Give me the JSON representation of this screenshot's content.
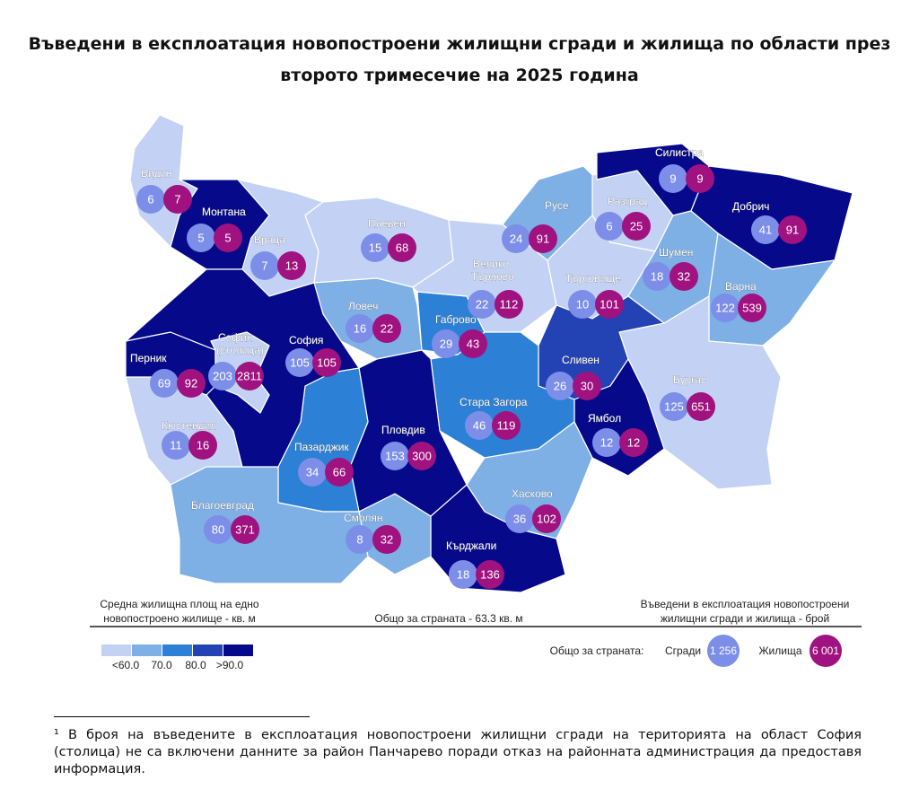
{
  "title": "Въведени в експлоатация новопостроени жилищни сгради и жилища по области през второто тримесечие на 2025 година",
  "colors": {
    "lt60": "#c3d2f4",
    "c70": "#7eafe5",
    "c80": "#2c80d6",
    "c90": "#2342b3",
    "gt90": "#06098a",
    "buildings": "#7c8ee8",
    "dwellings": "#a0127f"
  },
  "regions": [
    {
      "name": "Видин",
      "buildings": 6,
      "dwellings": 7,
      "cat": "lt60"
    },
    {
      "name": "Монтана",
      "buildings": 5,
      "dwellings": 5,
      "cat": "gt90"
    },
    {
      "name": "Враца",
      "buildings": 7,
      "dwellings": 13,
      "cat": "lt60"
    },
    {
      "name": "Плевен",
      "buildings": 15,
      "dwellings": 68,
      "cat": "lt60"
    },
    {
      "name": "Ловеч",
      "buildings": 16,
      "dwellings": 22,
      "cat": "c70"
    },
    {
      "name": "Габрово",
      "buildings": 29,
      "dwellings": 43,
      "cat": "c80"
    },
    {
      "name": "Велико Търново",
      "buildings": 22,
      "dwellings": 112,
      "cat": "lt60"
    },
    {
      "name": "Русе",
      "buildings": 24,
      "dwellings": 91,
      "cat": "c70"
    },
    {
      "name": "Разград",
      "buildings": 6,
      "dwellings": 25,
      "cat": "lt60"
    },
    {
      "name": "Силистра",
      "buildings": 9,
      "dwellings": 9,
      "cat": "gt90"
    },
    {
      "name": "Добрич",
      "buildings": 41,
      "dwellings": 91,
      "cat": "gt90"
    },
    {
      "name": "Търговище",
      "buildings": 10,
      "dwellings": 101,
      "cat": "lt60"
    },
    {
      "name": "Шумен",
      "buildings": 18,
      "dwellings": 32,
      "cat": "c70"
    },
    {
      "name": "Варна",
      "buildings": 122,
      "dwellings": 539,
      "cat": "c70"
    },
    {
      "name": "Бургас",
      "buildings": 125,
      "dwellings": 651,
      "cat": "lt60"
    },
    {
      "name": "Сливен",
      "buildings": 26,
      "dwellings": 30,
      "cat": "c90"
    },
    {
      "name": "Ямбол",
      "buildings": 12,
      "dwellings": 12,
      "cat": "gt90"
    },
    {
      "name": "Стара Загора",
      "buildings": 46,
      "dwellings": 119,
      "cat": "c80"
    },
    {
      "name": "Хасково",
      "buildings": 36,
      "dwellings": 102,
      "cat": "c70"
    },
    {
      "name": "Кърджали",
      "buildings": 18,
      "dwellings": 136,
      "cat": "gt90"
    },
    {
      "name": "Смолян",
      "buildings": 8,
      "dwellings": 32,
      "cat": "c70"
    },
    {
      "name": "Пловдив",
      "buildings": 153,
      "dwellings": 300,
      "cat": "gt90"
    },
    {
      "name": "Пазарджик",
      "buildings": 34,
      "dwellings": 66,
      "cat": "c80"
    },
    {
      "name": "Благоевград",
      "buildings": 80,
      "dwellings": 371,
      "cat": "c70"
    },
    {
      "name": "Кюстендил",
      "buildings": 11,
      "dwellings": 16,
      "cat": "lt60"
    },
    {
      "name": "Перник",
      "buildings": 69,
      "dwellings": 92,
      "cat": "gt90"
    },
    {
      "name": "София",
      "buildings": 105,
      "dwellings": 105,
      "cat": "gt90"
    },
    {
      "name": "София (столица)",
      "buildings": 203,
      "dwellings": 2811,
      "cat": "lt60"
    }
  ],
  "legend": {
    "area_title_1": "Средна жилищна площ на едно",
    "area_title_2": "новопостроено жилище - кв. м",
    "national_area": "Общо за страната - 63.3 кв. м",
    "count_title_1": "Въведени в експлоатация новопостроени",
    "count_title_2": "жилищни сгради и жилища - брой",
    "scale_labels": [
      "<60.0",
      "70.0",
      "80.0",
      ">90.0"
    ],
    "total_label": "Общо за страната:",
    "buildings_label": "Сгради",
    "buildings_total": "1 256",
    "dwellings_label": "Жилища",
    "dwellings_total": "6 001"
  },
  "footnote": "¹ В броя на въведените в експлоатация новопостроени жилищни сгради на територията на област София (столица) не са включени данните за район Панчарево поради отказ на районната администрация да предоставя информация."
}
